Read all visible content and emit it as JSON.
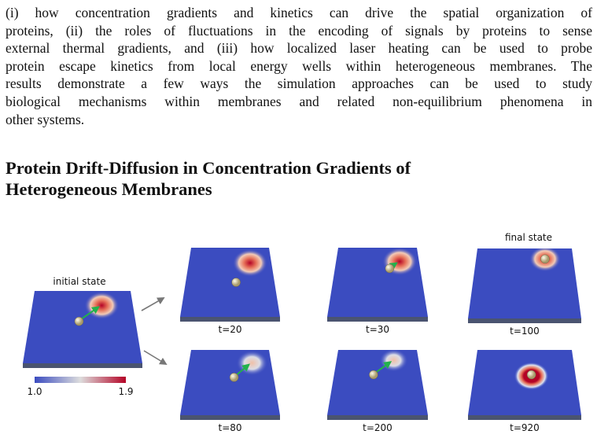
{
  "paragraph": {
    "lines": [
      "(i) how concentration gradients and kinetics can drive the spatial organization of",
      "proteins, (ii) the roles of fluctuations in the encoding of signals by proteins to sense",
      "external thermal gradients, and (iii) how localized laser heating can be used to probe",
      "protein escape kinetics from local energy wells within heterogeneous membranes. The",
      "results demonstrate a few ways the simulation approaches can be used to study",
      "biological mechanisms within membranes and related non-equilibrium phenomena in",
      "other systems."
    ]
  },
  "heading": {
    "lines": [
      "Protein Drift-Diffusion in Concentration Gradients of",
      "Heterogeneous Membranes"
    ]
  },
  "figure": {
    "initial_label": "initial state",
    "final_label": "final state",
    "colorbar": {
      "min_label": "1.0",
      "max_label": "1.9"
    },
    "panels": [
      {
        "label": "t=20"
      },
      {
        "label": "t=30"
      },
      {
        "label": "t=100"
      },
      {
        "label": "t=80"
      },
      {
        "label": "t=200"
      },
      {
        "label": "t=920"
      }
    ]
  }
}
